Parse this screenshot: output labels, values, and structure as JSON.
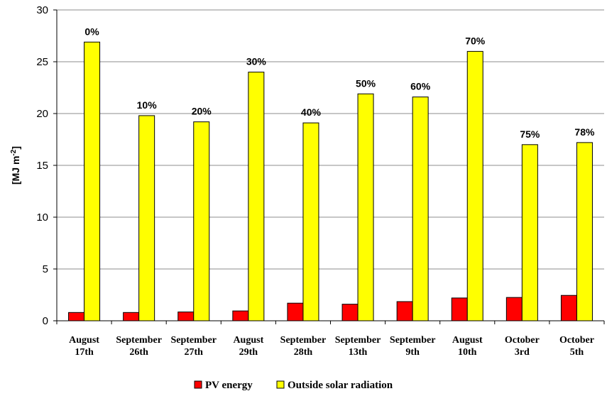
{
  "chart_data": {
    "type": "bar",
    "ylabel_main": "[MJ m",
    "ylabel_sup": "-2",
    "ylabel_end": "]",
    "ylim": [
      0,
      30
    ],
    "yticks": [
      0,
      5,
      10,
      15,
      20,
      25,
      30
    ],
    "grid": true,
    "legend_position": "bottom",
    "categories": [
      [
        "August",
        "17th"
      ],
      [
        "September",
        "26th"
      ],
      [
        "September",
        "27th"
      ],
      [
        "August",
        "29th"
      ],
      [
        "September",
        "28th"
      ],
      [
        "September",
        "13th"
      ],
      [
        "September",
        "9th"
      ],
      [
        "August",
        "10th"
      ],
      [
        "October",
        "3rd"
      ],
      [
        "October",
        "5th"
      ]
    ],
    "annotations": [
      "0%",
      "10%",
      "20%",
      "30%",
      "40%",
      "50%",
      "60%",
      "70%",
      "75%",
      "78%"
    ],
    "series": [
      {
        "name": "PV energy",
        "color": "#ff0000",
        "values": [
          0.8,
          0.8,
          0.85,
          0.95,
          1.7,
          1.6,
          1.85,
          2.2,
          2.25,
          2.45
        ]
      },
      {
        "name": "Outside solar radiation",
        "color": "#ffff00",
        "values": [
          26.9,
          19.8,
          19.2,
          24.0,
          19.1,
          21.9,
          21.6,
          26.0,
          17.0,
          17.2
        ]
      }
    ]
  }
}
